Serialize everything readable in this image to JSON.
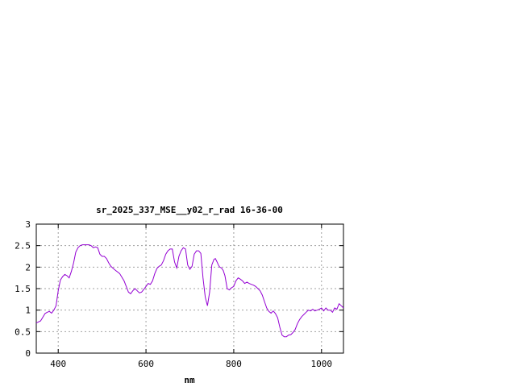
{
  "chart_data": {
    "type": "line",
    "title": "sr_2025_337_MSE__y02_r_rad 16-36-00",
    "xlabel": "nm",
    "ylabel": "",
    "xlim": [
      350,
      1050
    ],
    "ylim": [
      0,
      3
    ],
    "x_ticks": [
      400,
      600,
      800,
      1000
    ],
    "y_ticks": [
      0,
      0.5,
      1,
      1.5,
      2,
      2.5,
      3
    ],
    "x_tick_labels": [
      "400",
      "600",
      "800",
      "1000"
    ],
    "y_tick_labels": [
      "0",
      "0.5",
      "1",
      "1.5",
      "2",
      "2.5",
      "3"
    ],
    "grid": true,
    "line_color": "#9400d3",
    "series": [
      {
        "x": [
          350,
          360,
          370,
          375,
          380,
          385,
          390,
          395,
          400,
          405,
          410,
          415,
          420,
          425,
          430,
          435,
          440,
          445,
          450,
          455,
          460,
          465,
          470,
          475,
          480,
          485,
          490,
          495,
          500,
          505,
          510,
          515,
          520,
          525,
          530,
          540,
          550,
          555,
          560,
          565,
          570,
          575,
          580,
          585,
          590,
          595,
          600,
          605,
          610,
          615,
          620,
          625,
          630,
          635,
          640,
          645,
          650,
          655,
          660,
          665,
          670,
          675,
          680,
          685,
          690,
          695,
          700,
          705,
          710,
          715,
          720,
          725,
          730,
          735,
          740,
          745,
          750,
          755,
          758,
          762,
          765,
          768,
          772,
          776,
          780,
          785,
          790,
          795,
          800,
          805,
          810,
          815,
          820,
          825,
          830,
          835,
          840,
          845,
          850,
          855,
          860,
          865,
          870,
          875,
          880,
          885,
          890,
          895,
          900,
          905,
          910,
          915,
          920,
          925,
          930,
          935,
          940,
          945,
          950,
          955,
          960,
          965,
          970,
          975,
          980,
          985,
          990,
          995,
          1000,
          1005,
          1010,
          1015,
          1020,
          1025,
          1030,
          1035,
          1040,
          1045,
          1050
        ],
        "values": [
          0.7,
          0.75,
          0.92,
          0.95,
          0.97,
          0.93,
          1.0,
          1.1,
          1.45,
          1.7,
          1.78,
          1.83,
          1.8,
          1.75,
          1.9,
          2.1,
          2.35,
          2.45,
          2.5,
          2.52,
          2.52,
          2.52,
          2.52,
          2.5,
          2.45,
          2.47,
          2.45,
          2.3,
          2.25,
          2.25,
          2.2,
          2.1,
          2.02,
          1.97,
          1.93,
          1.85,
          1.68,
          1.55,
          1.42,
          1.38,
          1.45,
          1.5,
          1.45,
          1.4,
          1.42,
          1.48,
          1.55,
          1.62,
          1.6,
          1.68,
          1.85,
          1.97,
          2.02,
          2.05,
          2.15,
          2.3,
          2.38,
          2.42,
          2.42,
          2.12,
          1.98,
          2.25,
          2.38,
          2.45,
          2.42,
          2.05,
          1.95,
          2.02,
          2.3,
          2.38,
          2.38,
          2.32,
          1.75,
          1.3,
          1.1,
          1.42,
          2.05,
          2.18,
          2.2,
          2.12,
          2.05,
          2.0,
          1.98,
          1.92,
          1.8,
          1.5,
          1.47,
          1.52,
          1.55,
          1.68,
          1.75,
          1.72,
          1.68,
          1.62,
          1.65,
          1.62,
          1.6,
          1.58,
          1.55,
          1.5,
          1.45,
          1.35,
          1.2,
          1.05,
          0.97,
          0.93,
          0.98,
          0.92,
          0.82,
          0.6,
          0.42,
          0.38,
          0.38,
          0.42,
          0.43,
          0.48,
          0.55,
          0.68,
          0.78,
          0.85,
          0.9,
          0.95,
          1.0,
          0.98,
          1.02,
          0.98,
          1.0,
          1.02,
          1.05,
          0.98,
          1.05,
          1.0,
          1.0,
          0.95,
          1.05,
          1.02,
          1.15,
          1.1,
          1.05
        ]
      }
    ]
  }
}
